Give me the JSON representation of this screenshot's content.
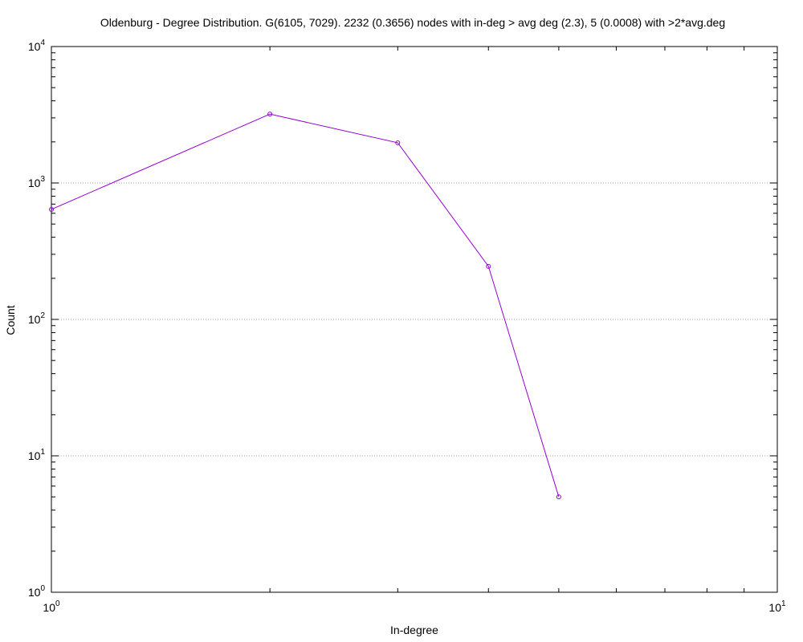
{
  "chart_data": {
    "type": "line",
    "title": "Oldenburg - Degree Distribution. G(6105, 7029). 2232 (0.3656) nodes with in-deg > avg deg (2.3), 5 (0.0008) with >2*avg.deg",
    "xlabel": "In-degree",
    "ylabel": "Count",
    "x_scale": "log",
    "y_scale": "log",
    "xlim": [
      1,
      10
    ],
    "ylim": [
      1,
      10000
    ],
    "grid": "horizontal-major-dotted",
    "x_ticks": [
      {
        "value": 1,
        "base": "10",
        "exp": "0"
      },
      {
        "value": 10,
        "base": "10",
        "exp": "1"
      }
    ],
    "y_ticks": [
      {
        "value": 1,
        "base": "10",
        "exp": "0"
      },
      {
        "value": 10,
        "base": "10",
        "exp": "1"
      },
      {
        "value": 100,
        "base": "10",
        "exp": "2"
      },
      {
        "value": 1000,
        "base": "10",
        "exp": "3"
      },
      {
        "value": 10000,
        "base": "10",
        "exp": "4"
      }
    ],
    "series": [
      {
        "color": "#9400d3",
        "marker": "circle",
        "points": [
          {
            "x": 1,
            "y": 640
          },
          {
            "x": 2,
            "y": 3200
          },
          {
            "x": 3,
            "y": 1970
          },
          {
            "x": 4,
            "y": 245
          },
          {
            "x": 5,
            "y": 5
          }
        ]
      }
    ]
  }
}
